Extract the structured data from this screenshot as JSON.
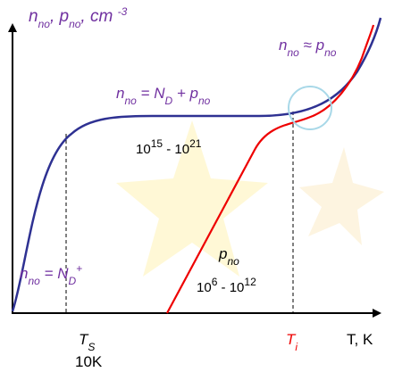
{
  "axes": {
    "y_label": [
      "n",
      "no",
      ", p",
      "no",
      ", cm ",
      "-3"
    ],
    "x_label": "T, K"
  },
  "labels": {
    "equal_high": [
      "n",
      "no",
      " ≈ p",
      "no"
    ],
    "plateau": [
      "n",
      "no",
      " = N",
      "D",
      " + p",
      "no"
    ],
    "range_n": [
      "10",
      "15",
      " - 10",
      "21"
    ],
    "p_label": [
      "p",
      "no"
    ],
    "range_p": [
      "10",
      "6",
      " - 10",
      "12"
    ],
    "low": [
      "n",
      "no",
      " = N",
      "D",
      "+"
    ],
    "ts": [
      "T",
      "S"
    ],
    "ts_value": "10K",
    "ti": [
      "T",
      "i"
    ]
  }
}
